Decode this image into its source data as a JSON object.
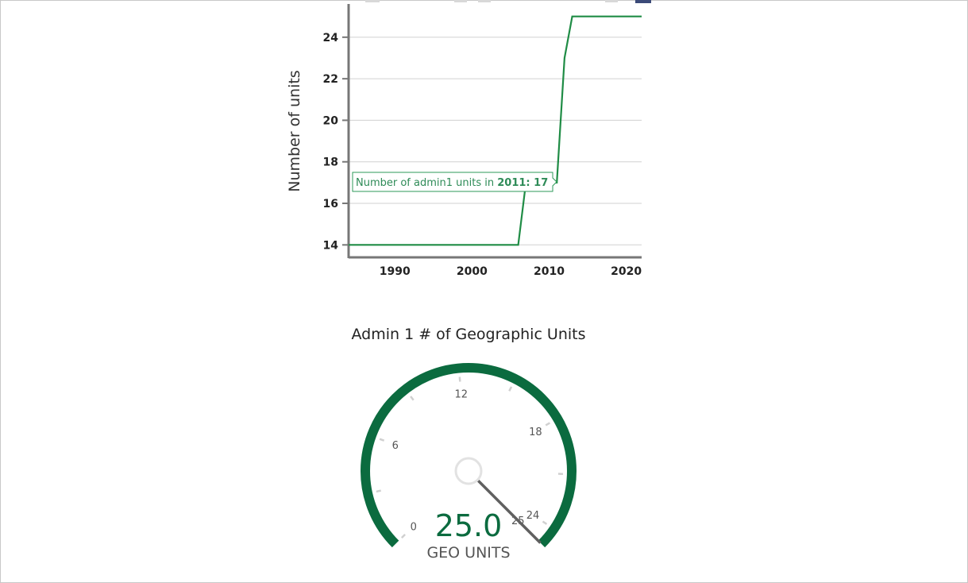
{
  "chart_data": [
    {
      "type": "line",
      "ylabel": "Number of units",
      "xlabel": "",
      "xlim": [
        1984,
        2022
      ],
      "ylim": [
        13.4,
        25.6
      ],
      "x_ticks": [
        1990,
        2000,
        2010,
        2020
      ],
      "y_ticks": [
        14,
        16,
        18,
        20,
        22,
        24
      ],
      "grid": true,
      "series": [
        {
          "color": "#1f8c45",
          "x": [
            1984,
            2006,
            2007,
            2011,
            2012,
            2013,
            2022
          ],
          "y": [
            14,
            14,
            17,
            17,
            23,
            25,
            25
          ]
        }
      ],
      "tooltip": {
        "prefix": "Number of admin1 units in ",
        "year": "2011",
        "sep": ": ",
        "value": "17"
      }
    },
    {
      "type": "gauge",
      "title": "Admin 1 # of Geographic Units",
      "min": 0,
      "max": 25,
      "value": 25,
      "value_label": "25.0",
      "unit_label": "GEO UNITS",
      "tick_labels": [
        0,
        6,
        12,
        18,
        24,
        25
      ],
      "minor_ticks": [
        3,
        9,
        15,
        21
      ],
      "arc_color": "#0b6b3f",
      "needle_color": "#606060"
    }
  ]
}
